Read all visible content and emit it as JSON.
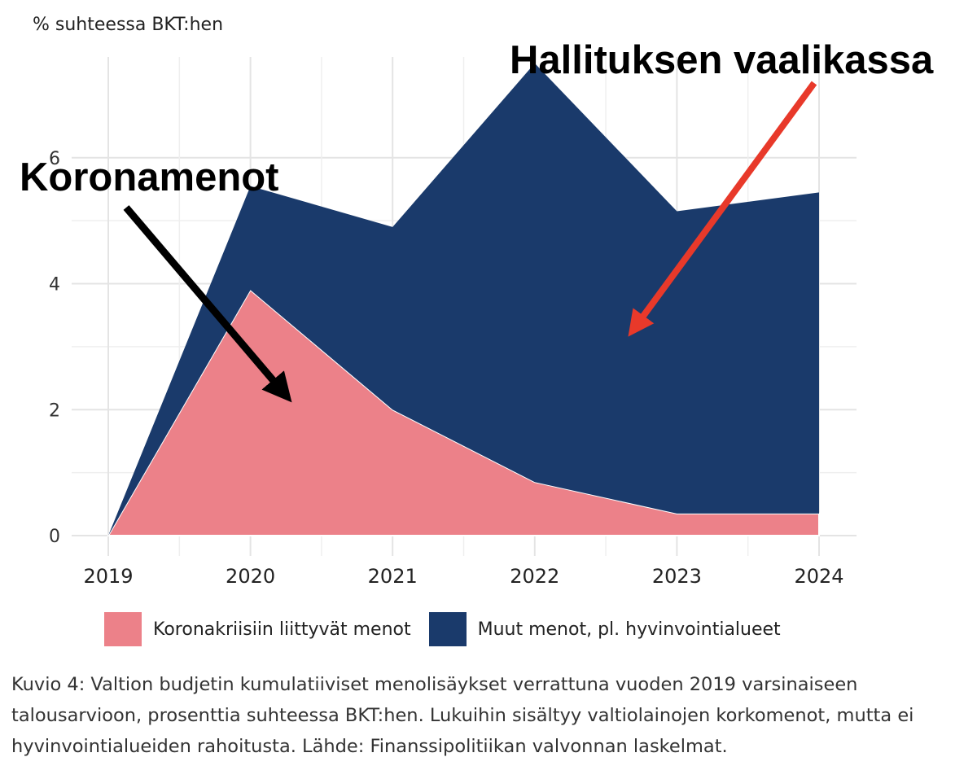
{
  "y_axis_title": "% suhteessa BKT:hen",
  "annotations": {
    "left": "Koronamenot",
    "right": "Hallituksen vaalikassa"
  },
  "legend": [
    {
      "label": "Koronakriisiin liittyvät menot",
      "color": "#ec8189"
    },
    {
      "label": "Muut menot, pl. hyvinvointialueet",
      "color": "#1a3a6b"
    }
  ],
  "caption": "Kuvio 4: Valtion budjetin kumulatiiviset menolisäykset verrattuna vuoden 2019 varsinaiseen talousarvioon, prosenttia suhteessa BKT:hen. Lukuihin sisältyy valtiolainojen korkomenot, mutta ei hyvinvointialueiden rahoitusta. Lähde: Finanssipolitiikan valvonnan laskelmat.",
  "chart_data": {
    "type": "area",
    "stacked": true,
    "categories": [
      "2019",
      "2020",
      "2021",
      "2022",
      "2023",
      "2024"
    ],
    "series": [
      {
        "name": "Koronakriisiin liittyvät menot",
        "color": "#ec8189",
        "values": [
          0.0,
          3.9,
          2.0,
          0.85,
          0.35,
          0.35
        ]
      },
      {
        "name": "Muut menot, pl. hyvinvointialueet",
        "color": "#1a3a6b",
        "values": [
          0.0,
          1.65,
          2.9,
          6.65,
          4.8,
          5.1
        ]
      }
    ],
    "ylabel": "% suhteessa BKT:hen",
    "ylim": [
      0,
      7.6
    ],
    "yticks": [
      0,
      2,
      4,
      6
    ],
    "grid": true,
    "legend_position": "bottom"
  }
}
